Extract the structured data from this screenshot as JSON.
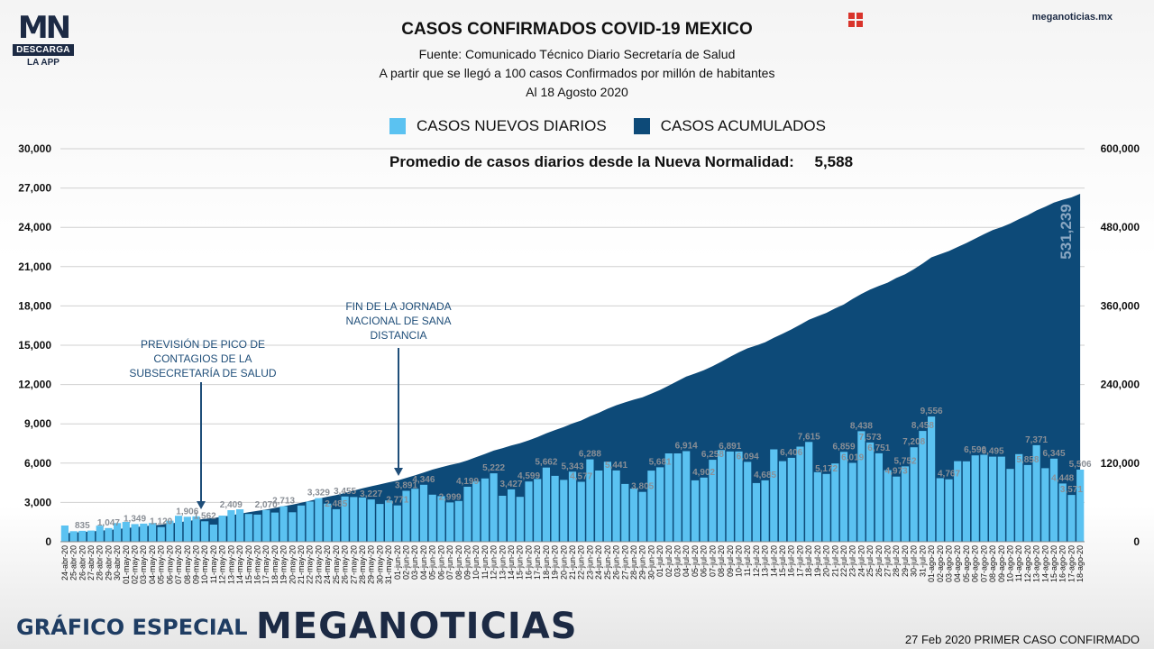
{
  "logo": {
    "mark": "MN",
    "badge": "DESCARGA",
    "sub": "LA APP"
  },
  "site": "meganoticias.mx",
  "header": {
    "title": "CASOS CONFIRMADOS COVID-19 MEXICO",
    "source": "Fuente: Comunicado Técnico Diario Secretaría de Salud",
    "note": "A partir que se llegó a 100 casos Confirmados por millón de habitantes",
    "date": "Al 18 Agosto 2020"
  },
  "legend": {
    "daily": "CASOS NUEVOS DIARIOS",
    "cumulative": "CASOS ACUMULADOS"
  },
  "average": {
    "label": "Promedio de casos diarios desde la Nueva Normalidad:",
    "value": "5,588"
  },
  "annotations": {
    "peak": "PREVISIÓN DE PICO DE CONTAGIOS DE LA SUBSECRETARÍA DE SALUD",
    "end": "FIN DE LA JORNADA NACIONAL DE SANA DISTANCIA"
  },
  "footer": {
    "left": "GRÁFICO ESPECIAL",
    "brand": "MEGANOTICIAS",
    "right": "27 Feb 2020 PRIMER CASO CONFIRMADO"
  },
  "colors": {
    "daily": "#5bc2f1",
    "cumulative": "#0d4a78",
    "cumulative_label": "#8aa7c2"
  },
  "chart_data": {
    "type": "bar",
    "categories": [
      "24-abr-20",
      "25-abr-20",
      "26-abr-20",
      "27-abr-20",
      "28-abr-20",
      "29-abr-20",
      "30-abr-20",
      "01-may-20",
      "02-may-20",
      "03-may-20",
      "04-may-20",
      "05-may-20",
      "06-may-20",
      "07-may-20",
      "08-may-20",
      "09-may-20",
      "10-may-20",
      "11-may-20",
      "12-may-20",
      "13-may-20",
      "14-may-20",
      "15-may-20",
      "16-may-20",
      "17-may-20",
      "18-may-20",
      "19-may-20",
      "20-may-20",
      "21-may-20",
      "22-may-20",
      "23-may-20",
      "24-may-20",
      "25-may-20",
      "26-may-20",
      "27-may-20",
      "28-may-20",
      "29-may-20",
      "30-may-20",
      "31-may-20",
      "01-jun-20",
      "02-jun-20",
      "03-jun-20",
      "04-jun-20",
      "05-jun-20",
      "06-jun-20",
      "07-jun-20",
      "08-jun-20",
      "09-jun-20",
      "10-jun-20",
      "11-jun-20",
      "12-jun-20",
      "13-jun-20",
      "14-jun-20",
      "15-jun-20",
      "16-jun-20",
      "17-jun-20",
      "18-jun-20",
      "19-jun-20",
      "20-jun-20",
      "21-jun-20",
      "22-jun-20",
      "23-jun-20",
      "24-jun-20",
      "25-jun-20",
      "26-jun-20",
      "27-jun-20",
      "28-jun-20",
      "29-jun-20",
      "30-jun-20",
      "01-jul-20",
      "02-jul-20",
      "03-jul-20",
      "04-jul-20",
      "05-jul-20",
      "06-jul-20",
      "07-jul-20",
      "08-jul-20",
      "09-jul-20",
      "10-jul-20",
      "11-jul-20",
      "12-jul-20",
      "13-jul-20",
      "14-jul-20",
      "15-jul-20",
      "16-jul-20",
      "17-jul-20",
      "18-jul-20",
      "19-jul-20",
      "20-jul-20",
      "21-jul-20",
      "22-jul-20",
      "23-jul-20",
      "24-jul-20",
      "25-jul-20",
      "26-jul-20",
      "27-jul-20",
      "28-jul-20",
      "29-jul-20",
      "30-jul-20",
      "31-jul-20",
      "01-ago-20",
      "02-ago-20",
      "03-ago-20",
      "04-ago-20",
      "05-ago-20",
      "06-ago-20",
      "07-ago-20",
      "08-ago-20",
      "09-ago-20",
      "10-ago-20",
      "11-ago-20",
      "12-ago-20",
      "13-ago-20",
      "14-ago-20",
      "15-ago-20",
      "16-ago-20",
      "17-ago-20",
      "18-ago-20"
    ],
    "series": [
      {
        "name": "CASOS NUEVOS DIARIOS",
        "axis": "left",
        "values": [
          1239,
          803,
          835,
          852,
          1223,
          1047,
          1425,
          1515,
          1349,
          1383,
          1434,
          1120,
          1609,
          1982,
          1906,
          1938,
          1562,
          1305,
          1997,
          2409,
          2475,
          2117,
          2070,
          2419,
          2227,
          2713,
          2248,
          2764,
          3069,
          3329,
          2912,
          2485,
          3455,
          3414,
          3377,
          3227,
          2885,
          3152,
          2771,
          3891,
          4048,
          4346,
          3593,
          3484,
          2999,
          3112,
          4199,
          4597,
          4832,
          5222,
          3509,
          3998,
          3427,
          4599,
          4790,
          5662,
          5030,
          4717,
          5343,
          4577,
          6288,
          5437,
          6104,
          5441,
          4410,
          4050,
          3805,
          5432,
          5681,
          6741,
          6740,
          6914,
          4683,
          4902,
          6258,
          6995,
          6891,
          6887,
          6094,
          4482,
          4685,
          7051,
          6149,
          6406,
          7257,
          7615,
          5311,
          5172,
          5970,
          6859,
          6019,
          8438,
          7573,
          6751,
          5464,
          4973,
          5752,
          7208,
          8458,
          9556,
          4853,
          4767,
          6148,
          6139,
          6590,
          6642,
          6495,
          6495,
          5558,
          6686,
          5858,
          7371,
          5618,
          6345,
          4448,
          3571,
          5506
        ]
      },
      {
        "name": "CASOS ACUMULADOS",
        "axis": "right",
        "values": [
          12872,
          13842,
          14677,
          15529,
          16752,
          17799,
          19224,
          20739,
          22088,
          23471,
          24905,
          26025,
          27634,
          29616,
          31522,
          33460,
          35022,
          36327,
          38324,
          40186,
          42595,
          45032,
          47144,
          49219,
          51633,
          54346,
          56594,
          59567,
          62527,
          65856,
          68620,
          71105,
          74560,
          78023,
          81400,
          84627,
          87512,
          90664,
          93435,
          97326,
          101238,
          105680,
          110026,
          113619,
          117103,
          120102,
          124301,
          129184,
          133974,
          139196,
          142690,
          146837,
          150264,
          154863,
          159793,
          165455,
          170485,
          175202,
          180545,
          185122,
          191410,
          196847,
          202951,
          208392,
          212802,
          216852,
          220657,
          226089,
          231770,
          238511,
          245251,
          252165,
          256848,
          261750,
          268008,
          275003,
          282283,
          289174,
          295268,
          299750,
          304435,
          311486,
          317635,
          324041,
          331298,
          338913,
          344224,
          349396,
          356255,
          362274,
          370712,
          378285,
          385036,
          390516,
          395489,
          402697,
          408449,
          416179,
          424637,
          434193,
          439046,
          443813,
          449961,
          456100,
          462690,
          469407,
          475902,
          480278,
          485836,
          492522,
          498380,
          505751,
          511369,
          517714,
          522162,
          525733,
          531239
        ]
      }
    ],
    "y_left": {
      "min": 0,
      "max": 30000,
      "ticks": [
        "0",
        "3,000",
        "6,000",
        "9,000",
        "12,000",
        "15,000",
        "18,000",
        "21,000",
        "24,000",
        "27,000",
        "30,000"
      ]
    },
    "y_right": {
      "min": 0,
      "max": 600000,
      "ticks": [
        "0",
        "120,000",
        "240,000",
        "360,000",
        "480,000",
        "600,000"
      ]
    },
    "bar_labels": [
      {
        "i": 2,
        "text": "835"
      },
      {
        "i": 5,
        "text": "1,047"
      },
      {
        "i": 8,
        "text": "1,349"
      },
      {
        "i": 11,
        "text": "1,120"
      },
      {
        "i": 14,
        "text": "1,906"
      },
      {
        "i": 16,
        "text": "1,562"
      },
      {
        "i": 19,
        "text": "2,409"
      },
      {
        "i": 23,
        "text": "2,070"
      },
      {
        "i": 25,
        "text": "2,713"
      },
      {
        "i": 29,
        "text": "3,329"
      },
      {
        "i": 31,
        "text": "2,485"
      },
      {
        "i": 32,
        "text": "3,455"
      },
      {
        "i": 35,
        "text": "3,227"
      },
      {
        "i": 38,
        "text": "2,771"
      },
      {
        "i": 39,
        "text": "3,891"
      },
      {
        "i": 41,
        "text": "4,346"
      },
      {
        "i": 44,
        "text": "2,999"
      },
      {
        "i": 46,
        "text": "4,199"
      },
      {
        "i": 49,
        "text": "5,222"
      },
      {
        "i": 51,
        "text": "3,427"
      },
      {
        "i": 53,
        "text": "4,599"
      },
      {
        "i": 55,
        "text": "5,662"
      },
      {
        "i": 58,
        "text": "5,343"
      },
      {
        "i": 59,
        "text": "4,577"
      },
      {
        "i": 60,
        "text": "6,288"
      },
      {
        "i": 63,
        "text": "5,441"
      },
      {
        "i": 66,
        "text": "3,805"
      },
      {
        "i": 68,
        "text": "5,681"
      },
      {
        "i": 71,
        "text": "6,914"
      },
      {
        "i": 73,
        "text": "4,902"
      },
      {
        "i": 74,
        "text": "6,258"
      },
      {
        "i": 76,
        "text": "6,891"
      },
      {
        "i": 78,
        "text": "6,094"
      },
      {
        "i": 80,
        "text": "4,685"
      },
      {
        "i": 83,
        "text": "6,406"
      },
      {
        "i": 85,
        "text": "7,615"
      },
      {
        "i": 87,
        "text": "5,172"
      },
      {
        "i": 89,
        "text": "6,859"
      },
      {
        "i": 90,
        "text": "6,019"
      },
      {
        "i": 91,
        "text": "8,438"
      },
      {
        "i": 92,
        "text": "7,573"
      },
      {
        "i": 93,
        "text": "6,751"
      },
      {
        "i": 95,
        "text": "4,973"
      },
      {
        "i": 96,
        "text": "5,752"
      },
      {
        "i": 97,
        "text": "7,208"
      },
      {
        "i": 98,
        "text": "8,458"
      },
      {
        "i": 99,
        "text": "9,556"
      },
      {
        "i": 101,
        "text": "4,767"
      },
      {
        "i": 104,
        "text": "6,590"
      },
      {
        "i": 106,
        "text": "6,495"
      },
      {
        "i": 110,
        "text": "5,858"
      },
      {
        "i": 111,
        "text": "7,371"
      },
      {
        "i": 113,
        "text": "6,345"
      },
      {
        "i": 114,
        "text": "4,448"
      },
      {
        "i": 115,
        "text": "3,571"
      },
      {
        "i": 116,
        "text": "5,506"
      }
    ],
    "cumulative_label": "531,239",
    "grid": true
  }
}
